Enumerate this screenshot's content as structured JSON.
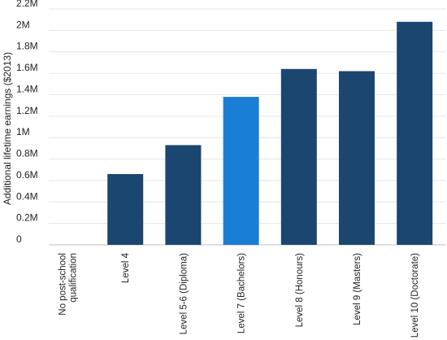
{
  "chart_data": {
    "type": "bar",
    "title": "",
    "xlabel": "",
    "ylabel": "Additional lifetime earnings ($2013)",
    "categories": [
      [
        "No post-school",
        "qualification"
      ],
      [
        "Level 4"
      ],
      [
        "Level 5-6 (Diploma)"
      ],
      [
        "Level 7 (Bachelors)"
      ],
      [
        "Level 8 (Honours)"
      ],
      [
        "Level 9 (Masters)"
      ],
      [
        "Level 10 (Doctorate)"
      ]
    ],
    "values": [
      0,
      660000,
      930000,
      1380000,
      1640000,
      1620000,
      2080000
    ],
    "ylim": [
      0,
      2200000
    ],
    "yticks": [
      0,
      200000,
      400000,
      600000,
      800000,
      1000000,
      1200000,
      1400000,
      1600000,
      1800000,
      2000000,
      2200000
    ],
    "ytick_labels": [
      "0",
      "0.2M",
      "0.4M",
      "0.6M",
      "0.8M",
      "1M",
      "1.2M",
      "1.4M",
      "1.6M",
      "1.8M",
      "2M",
      "2.2M"
    ],
    "grid": true,
    "legend": "none",
    "colors": {
      "bar": "#1a4670",
      "highlight": "#1a7fd4",
      "grid": "#e6e6e6",
      "text": "#222222"
    },
    "highlight_index": 3
  }
}
